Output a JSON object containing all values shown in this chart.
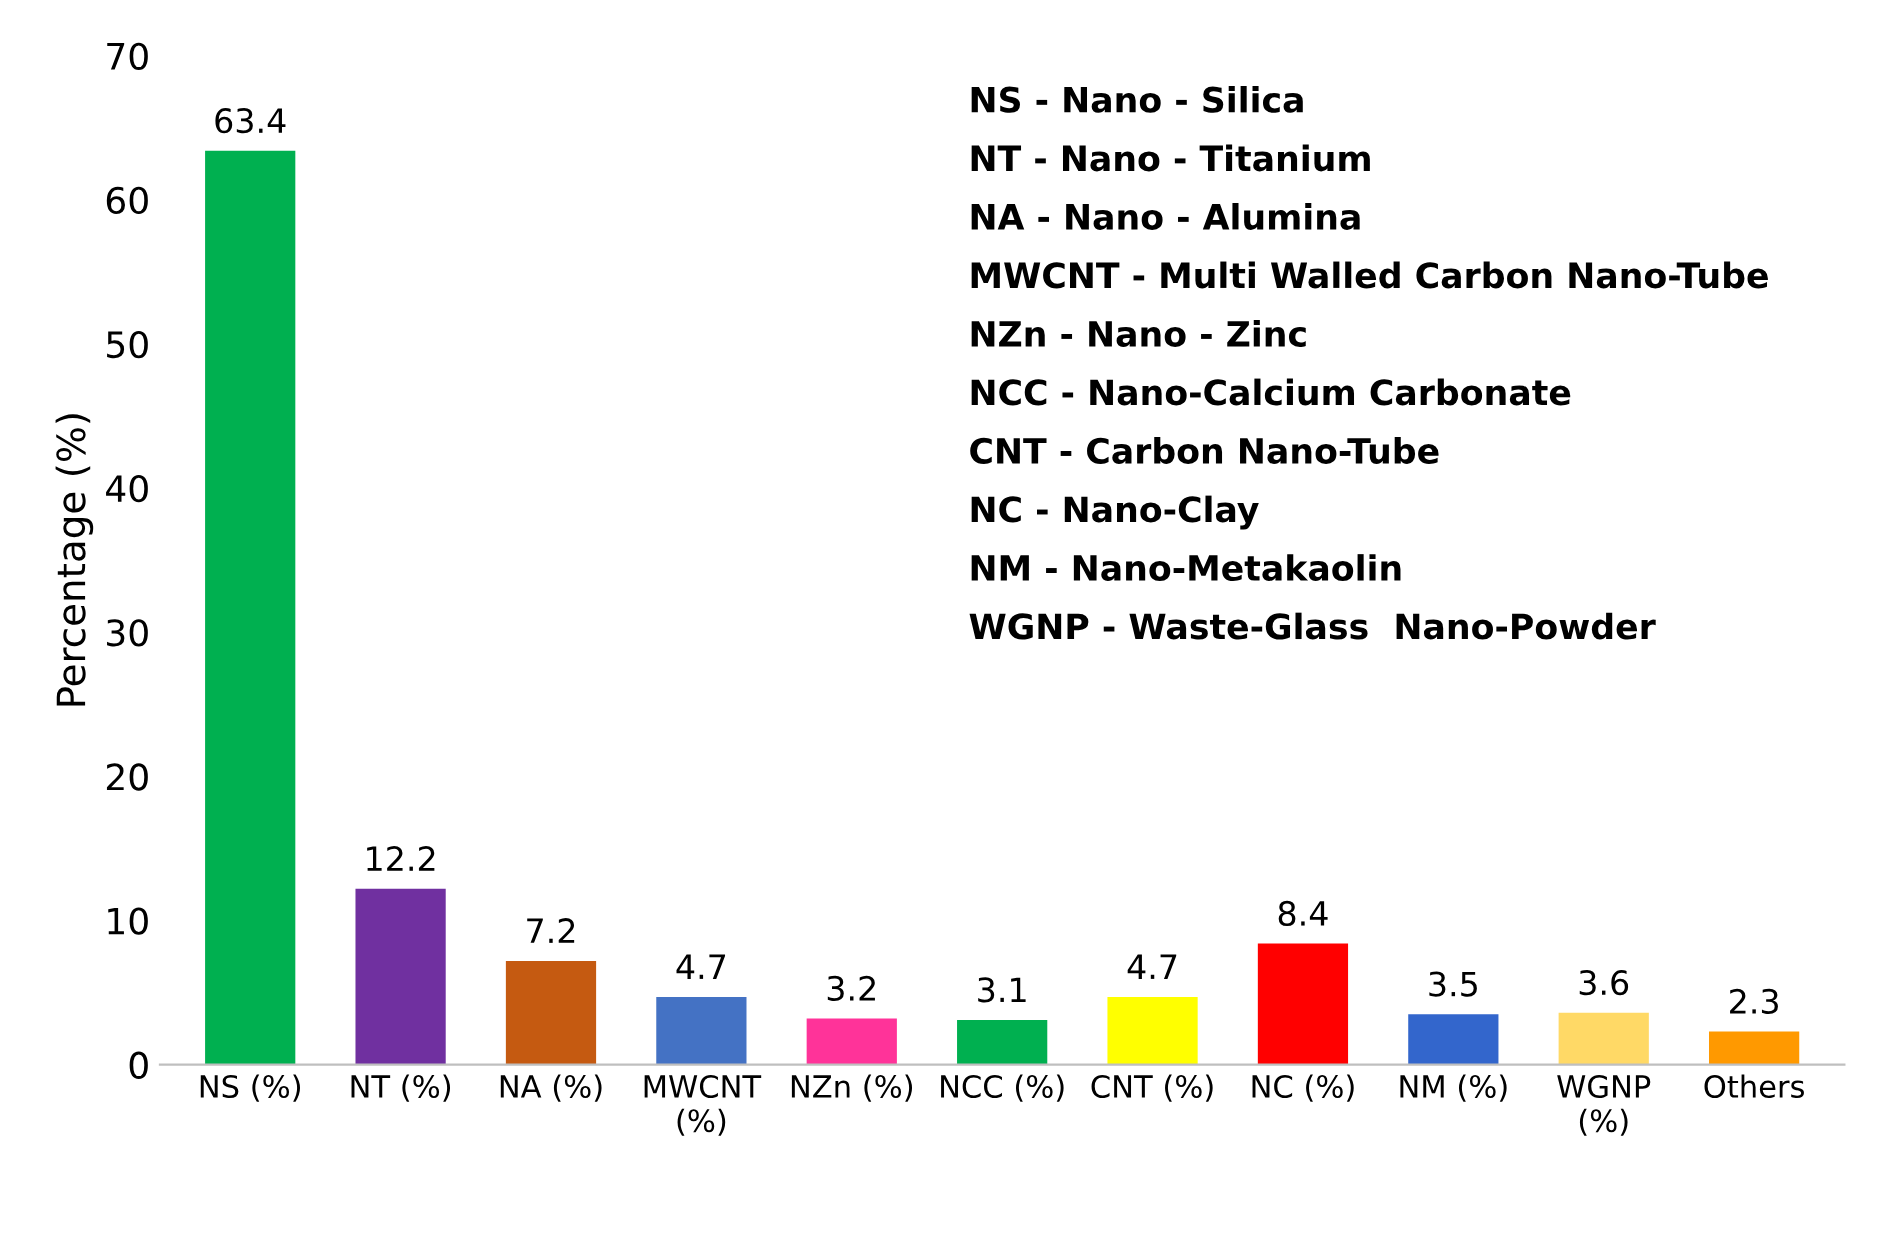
{
  "chart_data": {
    "type": "bar",
    "ylabel": "Percentage (%)",
    "categories": [
      "NS (%)",
      "NT (%)",
      "NA (%)",
      "MWCNT\n(%)",
      "NZn (%)",
      "NCC (%)",
      "CNT (%)",
      "NC (%)",
      "NM (%)",
      "WGNP\n(%)",
      "Others"
    ],
    "values": [
      63.4,
      12.2,
      7.2,
      4.7,
      3.2,
      3.1,
      4.7,
      8.4,
      3.5,
      3.6,
      2.3
    ],
    "colors": [
      "#00b050",
      "#7030a0",
      "#c55a11",
      "#4472c4",
      "#ff3399",
      "#00b050",
      "#ffff00",
      "#ff0000",
      "#3366cc",
      "#ffd966",
      "#ff9900"
    ],
    "ylim": [
      0,
      70
    ],
    "yticks": [
      0,
      10,
      20,
      30,
      40,
      50,
      60,
      70
    ],
    "grid": false,
    "data_labels": true,
    "annotations": [
      "NS - Nano - Silica",
      "NT - Nano - Titanium",
      "NA - Nano - Alumina",
      "MWCNT - Multi Walled Carbon Nano-Tube",
      "NZn - Nano - Zinc",
      "NCC - Nano-Calcium Carbonate",
      "CNT - Carbon Nano-Tube",
      "NC - Nano-Clay",
      "NM - Nano-Metakaolin",
      "WGNP - Waste-Glass  Nano-Powder"
    ]
  }
}
